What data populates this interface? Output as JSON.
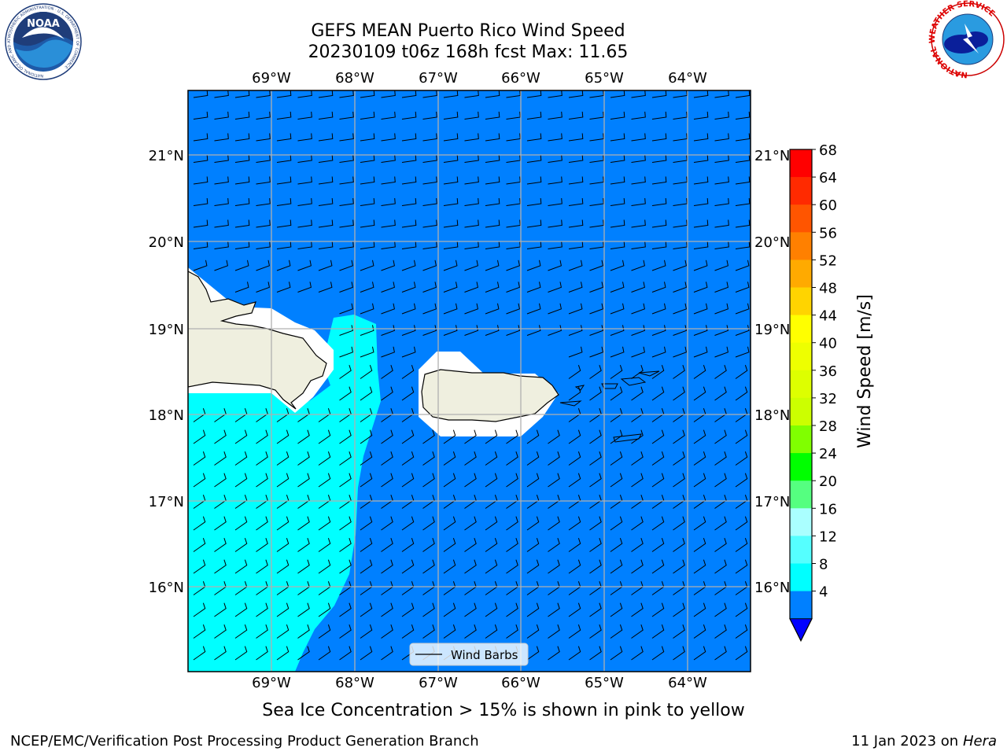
{
  "header": {
    "title_line1": "GEFS MEAN Puerto Rico Wind Speed",
    "title_line2": "20230109 t06z 168h fcst   Max: 11.65"
  },
  "logos": {
    "left": {
      "name": "noaa-logo",
      "text": "NOAA",
      "ring_text": "NATIONAL OCEANIC AND ATMOSPHERIC ADMINISTRATION · U.S. DEPARTMENT OF COMMERCE"
    },
    "right": {
      "name": "nws-logo",
      "ring_text": "NATIONAL WEATHER SERVICE"
    }
  },
  "map": {
    "top_lon_labels": [
      "69°W",
      "68°W",
      "67°W",
      "66°W",
      "65°W",
      "64°W"
    ],
    "bottom_lon_labels": [
      "69°W",
      "68°W",
      "67°W",
      "66°W",
      "65°W",
      "64°W"
    ],
    "left_lat_labels": [
      "21°N",
      "20°N",
      "19°N",
      "18°N",
      "17°N",
      "16°N"
    ],
    "right_lat_labels": [
      "21°N",
      "20°N",
      "19°N",
      "18°N",
      "17°N",
      "16°N"
    ],
    "legend_label": "Wind Barbs",
    "colors": {
      "ocean_4_8": "#0080ff",
      "ocean_8_12": "#00ffff",
      "land": "#efefdf",
      "grid": "#b0b0b0"
    }
  },
  "colorbar": {
    "label": "Wind Speed [m/s]",
    "ticks": [
      "68",
      "64",
      "60",
      "56",
      "52",
      "48",
      "44",
      "40",
      "36",
      "32",
      "28",
      "24",
      "20",
      "16",
      "12",
      "8",
      "4"
    ],
    "colors_top_to_bottom": [
      "#ff0000",
      "#ff2a00",
      "#ff5500",
      "#ff8000",
      "#ffaa00",
      "#ffd400",
      "#ffff00",
      "#eeff00",
      "#ddff00",
      "#ccff00",
      "#80ff00",
      "#00ff00",
      "#55ff80",
      "#aaffff",
      "#55ffff",
      "#00ffff",
      "#0080ff"
    ],
    "under_color": "#0000ff"
  },
  "chart_data": {
    "type": "heatmap",
    "title": "GEFS MEAN Puerto Rico Wind Speed",
    "subtitle": "20230109 t06z 168h fcst   Max: 11.65",
    "variable": "Wind Speed [m/s]",
    "max_value": 11.65,
    "lon_range": [
      -70,
      -63.25
    ],
    "lat_range": [
      15,
      21.75
    ],
    "grid": true,
    "levels": [
      4,
      8,
      12,
      16,
      20,
      24,
      28,
      32,
      36,
      40,
      44,
      48,
      52,
      56,
      60,
      64,
      68
    ],
    "regions_shown": [
      {
        "range": "4-8",
        "area": "most of domain"
      },
      {
        "range": "8-12",
        "area": "Mona Passage and southwest of Hispaniola"
      }
    ],
    "overlay": "Wind Barbs"
  },
  "footer": {
    "note": "Sea Ice Concentration > 15% is shown in pink to yellow",
    "left": "NCEP/EMC/Verification Post Processing Product Generation Branch",
    "right_prefix": "11 Jan 2023 on ",
    "right_host": "Hera"
  }
}
